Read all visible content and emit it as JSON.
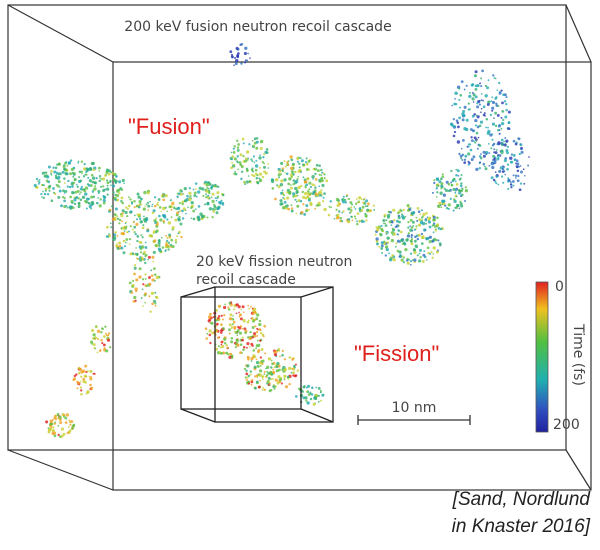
{
  "figure": {
    "title": "200 keV fusion neutron recoil cascade",
    "inset_label": [
      "20 keV fission neutron",
      "recoil cascade"
    ],
    "labels": {
      "fusion": "\"Fusion\"",
      "fission": "\"Fission\""
    },
    "scale_bar": "10 nm",
    "colorbar": {
      "label": "Time (fs)",
      "ticks": [
        0,
        200
      ]
    }
  },
  "citation": [
    "[Sand, Nordlund",
    "in Knaster 2016]"
  ]
}
